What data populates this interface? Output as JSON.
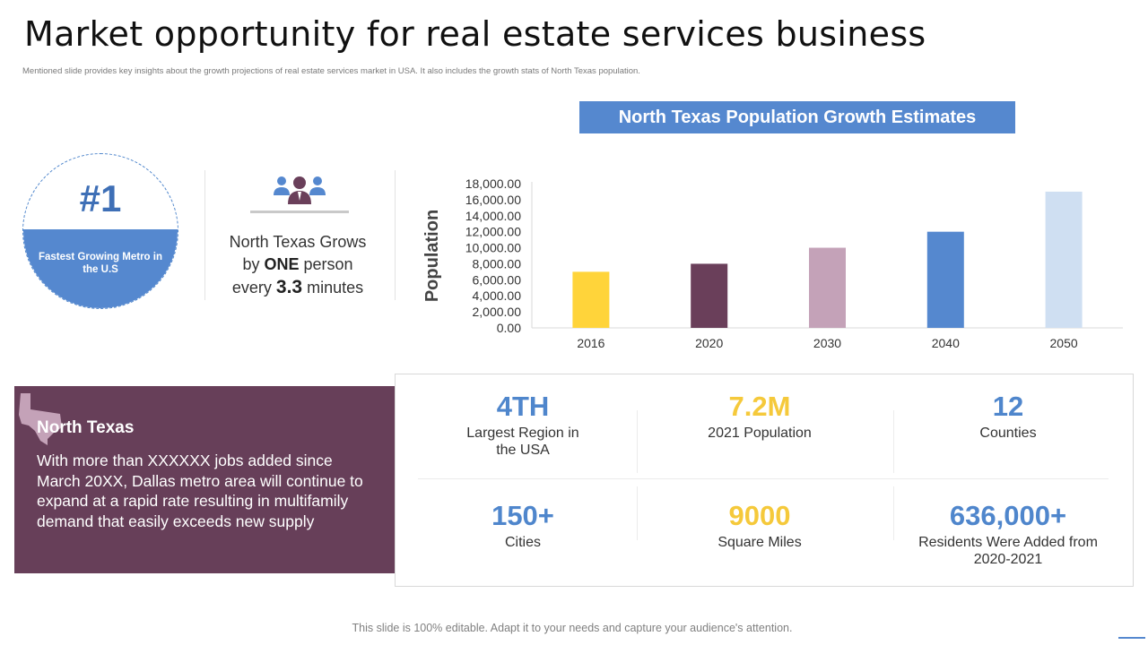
{
  "title": "Market opportunity for real estate services business",
  "subtitle": "Mentioned slide provides key insights about the growth projections of real estate services market in USA. It also includes the growth stats of North Texas population.",
  "badge": {
    "rank": "#1",
    "label": "Fastest Growing Metro in the U.S"
  },
  "grows": {
    "icon": "people-group-icon",
    "line1": "North Texas Grows",
    "line2_pre": "by ",
    "line2_bold": "ONE",
    "line2_post": " person",
    "line3_pre": "every ",
    "line3_bold": "3.3",
    "line3_post": " minutes"
  },
  "chart_title": "North Texas Population Growth Estimates",
  "chart_data": {
    "type": "bar",
    "title": "North Texas Population Growth Estimates",
    "categories": [
      "2016",
      "2020",
      "2030",
      "2040",
      "2050"
    ],
    "values": [
      7000,
      8000,
      10000,
      12000,
      17000
    ],
    "colors": [
      "#ffd43a",
      "#6a3f5a",
      "#c4a2b8",
      "#5588cf",
      "#cfdff2"
    ],
    "xlabel": "",
    "ylabel": "Population",
    "ylim": [
      0,
      18000
    ],
    "yticks": [
      "0.00",
      "2,000.00",
      "4,000.00",
      "6,000.00",
      "8,000.00",
      "10,000.00",
      "12,000.00",
      "14,000.00",
      "16,000.00",
      "18,000.00"
    ],
    "grid": false
  },
  "north_texas": {
    "icon": "texas-map-icon",
    "title": "North Texas",
    "body": "With more than XXXXXX jobs added since March 20XX, Dallas metro area will continue to expand at a rapid rate resulting in multifamily demand that easily exceeds new supply"
  },
  "stats": [
    {
      "value": "4TH",
      "label": "Largest Region in the USA",
      "color": "#4f86cc"
    },
    {
      "value": "7.2M",
      "label": "2021 Population",
      "color": "#f5c93b"
    },
    {
      "value": "12",
      "label": "Counties",
      "color": "#4f86cc"
    },
    {
      "value": "150+",
      "label": "Cities",
      "color": "#4f86cc"
    },
    {
      "value": "9000",
      "label": "Square Miles",
      "color": "#f5c93b"
    },
    {
      "value": "636,000+",
      "label": "Residents Were Added from 2020-2021",
      "color": "#4f86cc"
    }
  ],
  "footer": "This slide is 100% editable. Adapt it to your needs and capture your audience's attention."
}
